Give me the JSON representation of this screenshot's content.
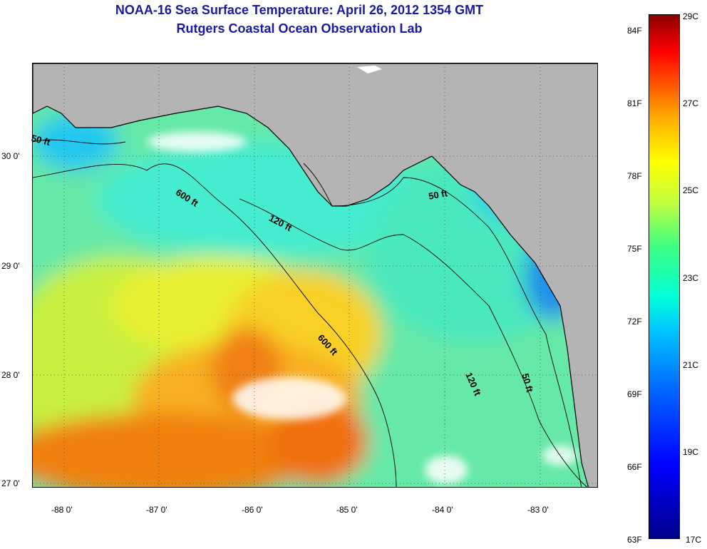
{
  "header": {
    "title": "NOAA-16 Sea Surface Temperature:  April 26, 2012 1354 GMT",
    "subtitle": "Rutgers Coastal Ocean Observation Lab"
  },
  "map": {
    "lon_ticks": [
      "-88 0'",
      "-87 0'",
      "-86 0'",
      "-85 0'",
      "-84 0'",
      "-83 0'"
    ],
    "lat_ticks": [
      "30 0'",
      "29 0'",
      "28 0'",
      "27 0'"
    ],
    "contour_labels": [
      "50 ft",
      "600 ft",
      "120 ft",
      "50 ft",
      "600 ft",
      "120 ft",
      "50 ft"
    ],
    "colors": {
      "land": "#b4b4b4",
      "cloud": "#ffffff",
      "coastline": "#000000"
    }
  },
  "colorbar": {
    "fahrenheit": [
      "84F",
      "81F",
      "78F",
      "75F",
      "72F",
      "69F",
      "66F",
      "63F"
    ],
    "celsius": [
      "29C",
      "27C",
      "25C",
      "23C",
      "21C",
      "19C",
      "17C"
    ]
  }
}
